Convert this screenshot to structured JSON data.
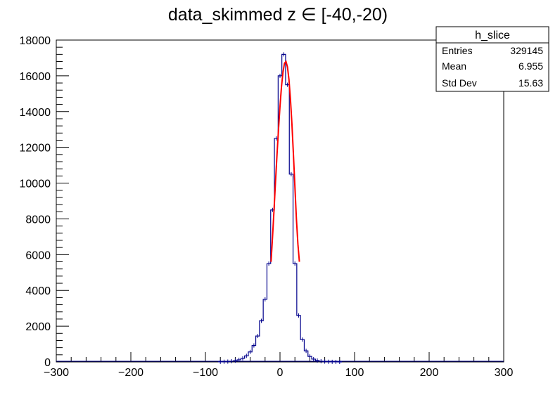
{
  "chart_data": {
    "type": "histogram",
    "title": "data_skimmed z  ∈ [-40,-20)",
    "xlabel": "",
    "ylabel": "",
    "xlim": [
      -300,
      300
    ],
    "ylim": [
      0,
      18000
    ],
    "x_major_ticks": [
      -300,
      -200,
      -100,
      0,
      100,
      200,
      300
    ],
    "x_tick_labels": [
      "−300",
      "−200",
      "−100",
      "0",
      "100",
      "200",
      "300"
    ],
    "y_major_ticks": [
      0,
      2000,
      4000,
      6000,
      8000,
      10000,
      12000,
      14000,
      16000,
      18000
    ],
    "y_tick_labels": [
      "0",
      "2000",
      "4000",
      "6000",
      "8000",
      "10000",
      "12000",
      "14000",
      "16000",
      "18000"
    ],
    "series": [
      {
        "name": "h_slice",
        "kind": "histogram",
        "color": "#00008b",
        "x": [
          -80,
          -75,
          -70,
          -65,
          -60,
          -55,
          -50,
          -45,
          -40,
          -35,
          -30,
          -25,
          -20,
          -15,
          -10,
          -5,
          0,
          5,
          10,
          15,
          20,
          25,
          30,
          35,
          40,
          45,
          50,
          55,
          60,
          65,
          70,
          75,
          80
        ],
        "y": [
          5,
          10,
          20,
          40,
          70,
          120,
          200,
          340,
          560,
          920,
          1450,
          2300,
          3500,
          5500,
          8500,
          12500,
          16000,
          17200,
          15500,
          10500,
          5500,
          2600,
          1250,
          620,
          310,
          160,
          80,
          40,
          20,
          10,
          5,
          2,
          0
        ]
      },
      {
        "name": "fit",
        "kind": "line",
        "color": "#ff0000",
        "x": [
          -12,
          -10,
          -8,
          -6,
          -4,
          -2,
          0,
          2,
          4,
          6,
          8,
          10,
          12,
          14,
          16,
          18,
          20,
          22,
          24,
          26
        ],
        "y": [
          5600,
          7000,
          8500,
          10100,
          11600,
          13000,
          14300,
          15400,
          16200,
          16700,
          16800,
          16500,
          15800,
          14700,
          13300,
          11600,
          9800,
          8000,
          6600,
          5600
        ]
      }
    ],
    "grid": false,
    "legend": "none"
  },
  "stats_box": {
    "title": "h_slice",
    "rows": [
      {
        "label": "Entries",
        "value": "329145"
      },
      {
        "label": "Mean",
        "value": "6.955"
      },
      {
        "label": "Std Dev",
        "value": "15.63"
      }
    ]
  }
}
